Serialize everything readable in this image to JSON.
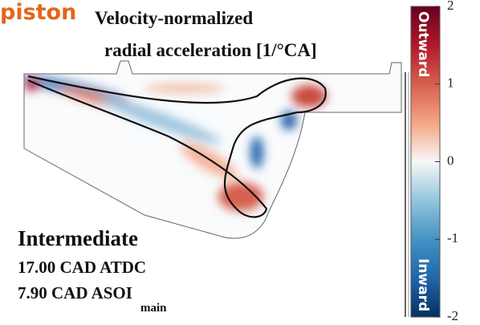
{
  "chart_data": {
    "type": "contour",
    "corner_label": "piston",
    "title": [
      "Velocity-normalized",
      "radial acceleration [1/°CA]"
    ],
    "colorbar": {
      "clim": [
        -2,
        2
      ],
      "ticks": [
        -2,
        -1,
        0,
        1,
        2
      ],
      "top_label": "Outward",
      "bottom_label": "Inward",
      "colors": [
        "#053061",
        "#2166ac",
        "#4393c3",
        "#92c5de",
        "#f7f7f7",
        "#f4a582",
        "#d6604d",
        "#b2182b",
        "#67001f"
      ]
    },
    "annotations": [
      "Intermediate",
      "17.00 CAD ATDC"
    ],
    "timing": {
      "text": "7.90 CAD ASOI",
      "subscript": "main"
    }
  }
}
